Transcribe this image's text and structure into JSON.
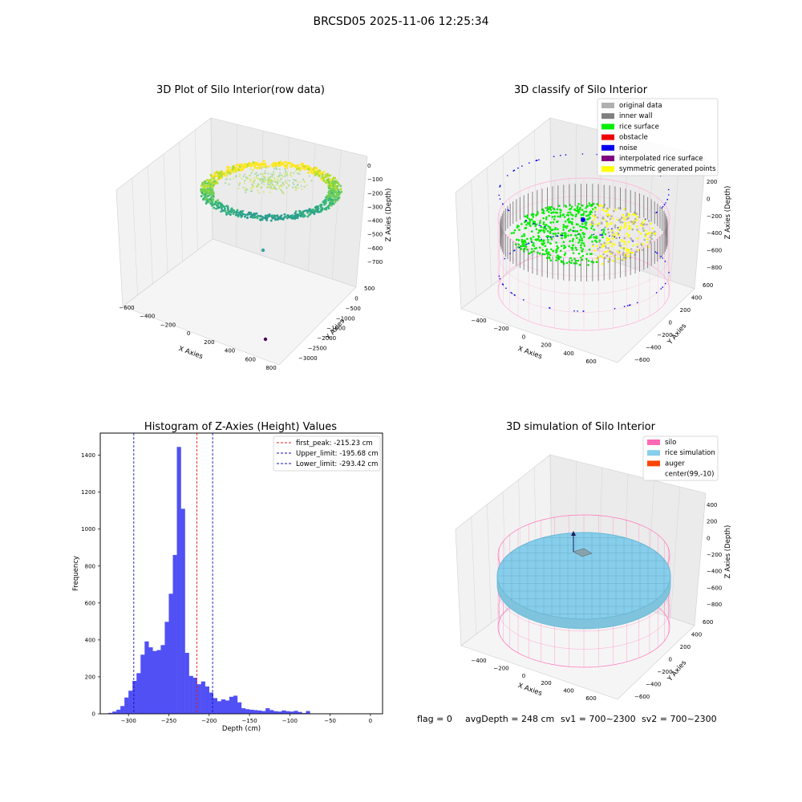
{
  "suptitle": "BRCSD05 2025-11-06 12:25:34",
  "footer": {
    "flag": "flag = 0",
    "avg_depth": "avgDepth = 248 cm",
    "sv1": "sv1 = 700~2300",
    "sv2": "sv2 = 700~2300"
  },
  "colors": {
    "histogram_bar": "#5050f5",
    "peak_line": "#e02020",
    "limit_line": "#1010c0",
    "silo_wire": "#ff77bb",
    "rice_simulation": "#87ceeb",
    "auger": "#ff4500"
  },
  "chart_data": [
    {
      "type": "scatter3d",
      "title": "3D Plot of Silo Interior(row data)",
      "xlabel": "X Axies",
      "ylabel": "Y Axies",
      "zlabel": "Z Axies (Depth)",
      "xticks": [
        "−600",
        "−400",
        "−200",
        "0",
        "200",
        "400",
        "600",
        "800"
      ],
      "yticks": [
        "500",
        "0",
        "−500",
        "−1000",
        "−1500",
        "−2000",
        "−2500",
        "−3000"
      ],
      "zticks": [
        "0",
        "−100",
        "−200",
        "−300",
        "−400",
        "−500",
        "−600",
        "−700"
      ],
      "xlim": [
        -600,
        800
      ],
      "ylim": [
        -3000,
        500
      ],
      "zlim": [
        -700,
        0
      ],
      "colormap": "viridis",
      "outliers": [
        {
          "x": 99,
          "y": -10,
          "z": -640,
          "color": "#3aa0a0"
        },
        {
          "x": 650,
          "y": -2900,
          "z": -700,
          "color": "#4b0a55"
        }
      ]
    },
    {
      "type": "scatter3d",
      "title": "3D classify of Silo Interior",
      "xlabel": "X Axies",
      "ylabel": "Y Axies",
      "zlabel": "Z Axies (Depth)",
      "xticks": [
        "−400",
        "−200",
        "0",
        "200",
        "400",
        "600"
      ],
      "yticks": [
        "600",
        "400",
        "200",
        "0",
        "−200",
        "−400",
        "−600"
      ],
      "zticks": [
        "200",
        "0",
        "−200",
        "−400",
        "−600",
        "−800"
      ],
      "legend_position": "top-right",
      "legend": [
        {
          "label": "original data",
          "color": "#b0b0b0"
        },
        {
          "label": "inner wall",
          "color": "#808080"
        },
        {
          "label": "rice surface",
          "color": "#00ee00"
        },
        {
          "label": "obstacle",
          "color": "#ee0000"
        },
        {
          "label": "noise",
          "color": "#0000ee"
        },
        {
          "label": "interpolated rice surface",
          "color": "#800080"
        },
        {
          "label": "symmetric generated points",
          "color": "#ffff00"
        }
      ]
    },
    {
      "type": "bar",
      "title": "Histogram of Z-Axies (Height) Values",
      "xlabel": "Depth (cm)",
      "ylabel": "Frequency",
      "xlim": [
        -335,
        15
      ],
      "ylim": [
        0,
        1520
      ],
      "xticks": [
        -300,
        -250,
        -200,
        -150,
        -100,
        -50,
        0
      ],
      "yticks": [
        0,
        200,
        400,
        600,
        800,
        1000,
        1200,
        1400
      ],
      "bin_start": -325,
      "bin_width": 5,
      "values": [
        5,
        12,
        22,
        42,
        88,
        125,
        178,
        220,
        320,
        392,
        360,
        340,
        345,
        372,
        498,
        650,
        860,
        1445,
        1110,
        330,
        205,
        195,
        160,
        175,
        148,
        115,
        85,
        68,
        78,
        72,
        92,
        98,
        62,
        30,
        25,
        22,
        20,
        18,
        15,
        30,
        20,
        14,
        12,
        18,
        14,
        12,
        16,
        10,
        4,
        15
      ],
      "legend_position": "top-right",
      "lines": [
        {
          "label": "first_peak: -215.23 cm",
          "x": -215.23,
          "color": "#e02020"
        },
        {
          "label": "Upper_limit: -195.68 cm",
          "x": -195.68,
          "color": "#1010c0"
        },
        {
          "label": "Lower_limit: -293.42 cm",
          "x": -293.42,
          "color": "#1010c0"
        }
      ]
    },
    {
      "type": "surface3d",
      "title": "3D simulation of Silo Interior",
      "xlabel": "X Axies",
      "ylabel": "Y Axies",
      "zlabel": "Z Axies (Depth)",
      "xticks": [
        "−400",
        "−200",
        "0",
        "200",
        "400",
        "600"
      ],
      "yticks": [
        "600",
        "400",
        "200",
        "0",
        "−200",
        "−400",
        "−600"
      ],
      "zticks": [
        "400",
        "200",
        "0",
        "−200",
        "−400",
        "−600",
        "−800"
      ],
      "legend_position": "top-right",
      "legend": [
        {
          "label": "silo",
          "color": "#ff69b4"
        },
        {
          "label": "rice simulation",
          "color": "#87ceeb"
        },
        {
          "label": "auger",
          "color": "#ff4500"
        },
        {
          "label": "center(99,-10)",
          "color": ""
        }
      ]
    }
  ]
}
